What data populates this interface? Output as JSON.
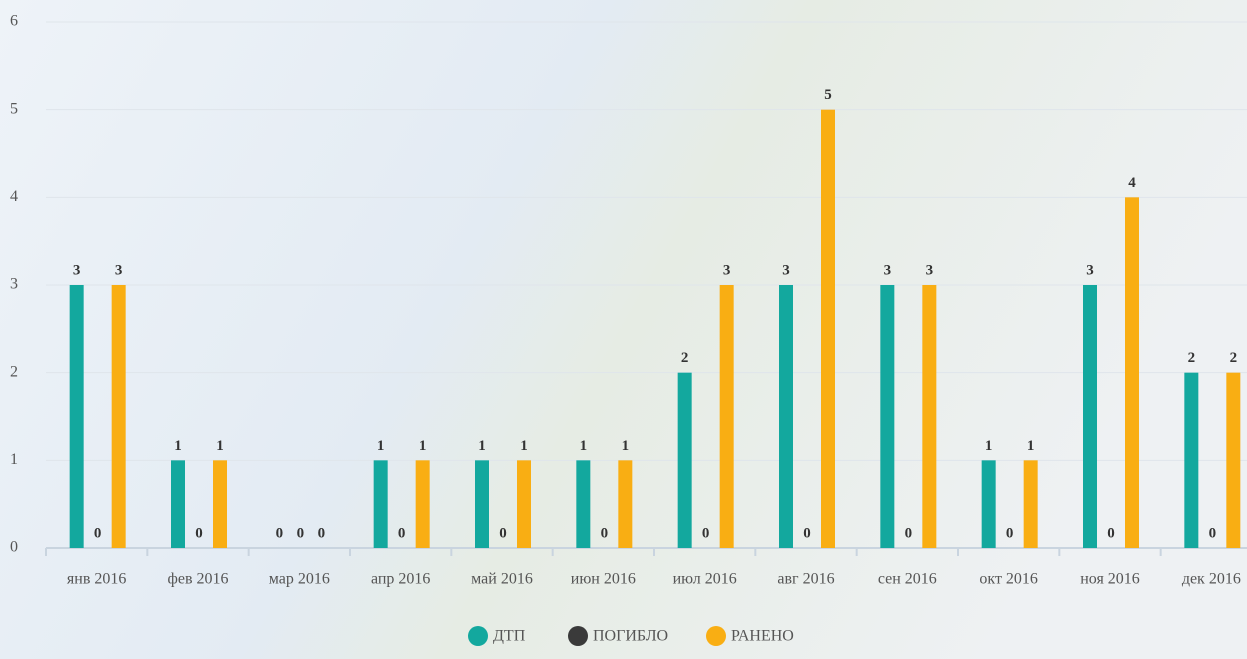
{
  "chart_data": {
    "type": "bar",
    "categories": [
      "янв 2016",
      "фев 2016",
      "мар 2016",
      "апр 2016",
      "май 2016",
      "июн 2016",
      "июл 2016",
      "авг 2016",
      "сен 2016",
      "окт 2016",
      "ноя 2016",
      "дек 2016"
    ],
    "series": [
      {
        "name": "ДТП",
        "color": "#13a89e",
        "values": [
          3,
          1,
          0,
          1,
          1,
          1,
          2,
          3,
          3,
          1,
          3,
          2
        ]
      },
      {
        "name": "ПОГИБЛО",
        "color": "#3a3a3a",
        "values": [
          0,
          0,
          0,
          0,
          0,
          0,
          0,
          0,
          0,
          0,
          0,
          0
        ]
      },
      {
        "name": "РАНЕНО",
        "color": "#f9ae13",
        "values": [
          3,
          1,
          0,
          1,
          1,
          1,
          3,
          5,
          3,
          1,
          4,
          2
        ]
      }
    ],
    "ylim": [
      0,
      6
    ],
    "yticks": [
      0,
      1,
      2,
      3,
      4,
      5,
      6
    ],
    "grid": true
  }
}
